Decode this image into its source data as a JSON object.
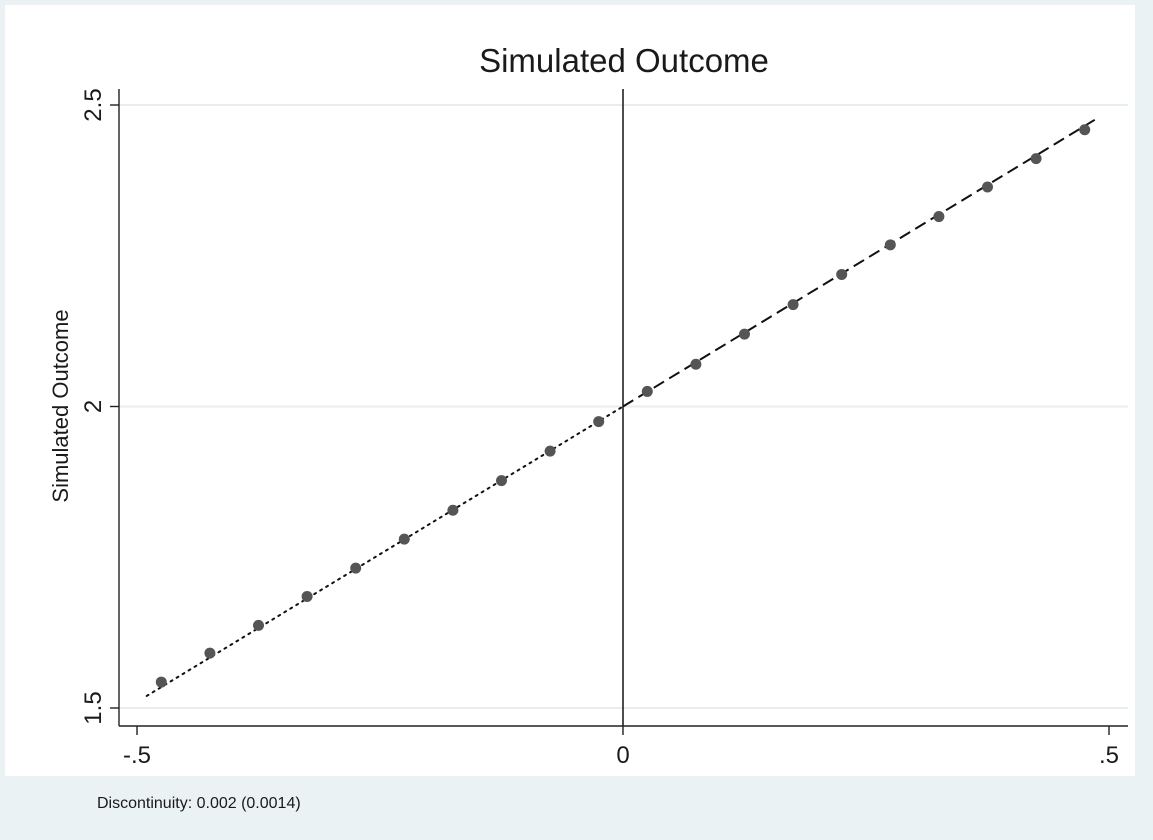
{
  "chart_data": {
    "type": "scatter",
    "title": "Simulated Outcome",
    "xlabel": "",
    "ylabel": "Simulated Outcome",
    "xlim": [
      -0.5,
      0.5
    ],
    "ylim": [
      1.5,
      2.5
    ],
    "x_ticks": [
      {
        "value": -0.5,
        "label": "-.5"
      },
      {
        "value": 0,
        "label": "0"
      },
      {
        "value": 0.5,
        "label": ".5"
      }
    ],
    "y_ticks": [
      {
        "value": 1.5,
        "label": "1.5"
      },
      {
        "value": 2,
        "label": "2"
      },
      {
        "value": 2.5,
        "label": "2.5"
      }
    ],
    "grid": "horizontal",
    "cutoff": 0,
    "points": {
      "x": [
        -0.475,
        -0.425,
        -0.375,
        -0.325,
        -0.275,
        -0.225,
        -0.175,
        -0.125,
        -0.075,
        -0.025,
        0.025,
        0.075,
        0.125,
        0.175,
        0.225,
        0.275,
        0.325,
        0.375,
        0.425,
        0.475
      ],
      "y": [
        1.543,
        1.591,
        1.637,
        1.685,
        1.732,
        1.78,
        1.828,
        1.877,
        1.926,
        1.975,
        2.025,
        2.07,
        2.12,
        2.169,
        2.219,
        2.268,
        2.315,
        2.364,
        2.411,
        2.459
      ],
      "color": "#555555"
    },
    "fit_left": {
      "x": [
        -0.49,
        0
      ],
      "y": [
        1.52,
        2.0
      ],
      "style": "dotted"
    },
    "fit_right": {
      "x": [
        0,
        0.49
      ],
      "y": [
        2.0,
        2.48
      ],
      "style": "dashed"
    },
    "note": "Discontinuity: 0.002 (0.0014)",
    "background_color": "#eaf2f3",
    "plot_background": "#ffffff",
    "grid_color": "#e8eded"
  }
}
